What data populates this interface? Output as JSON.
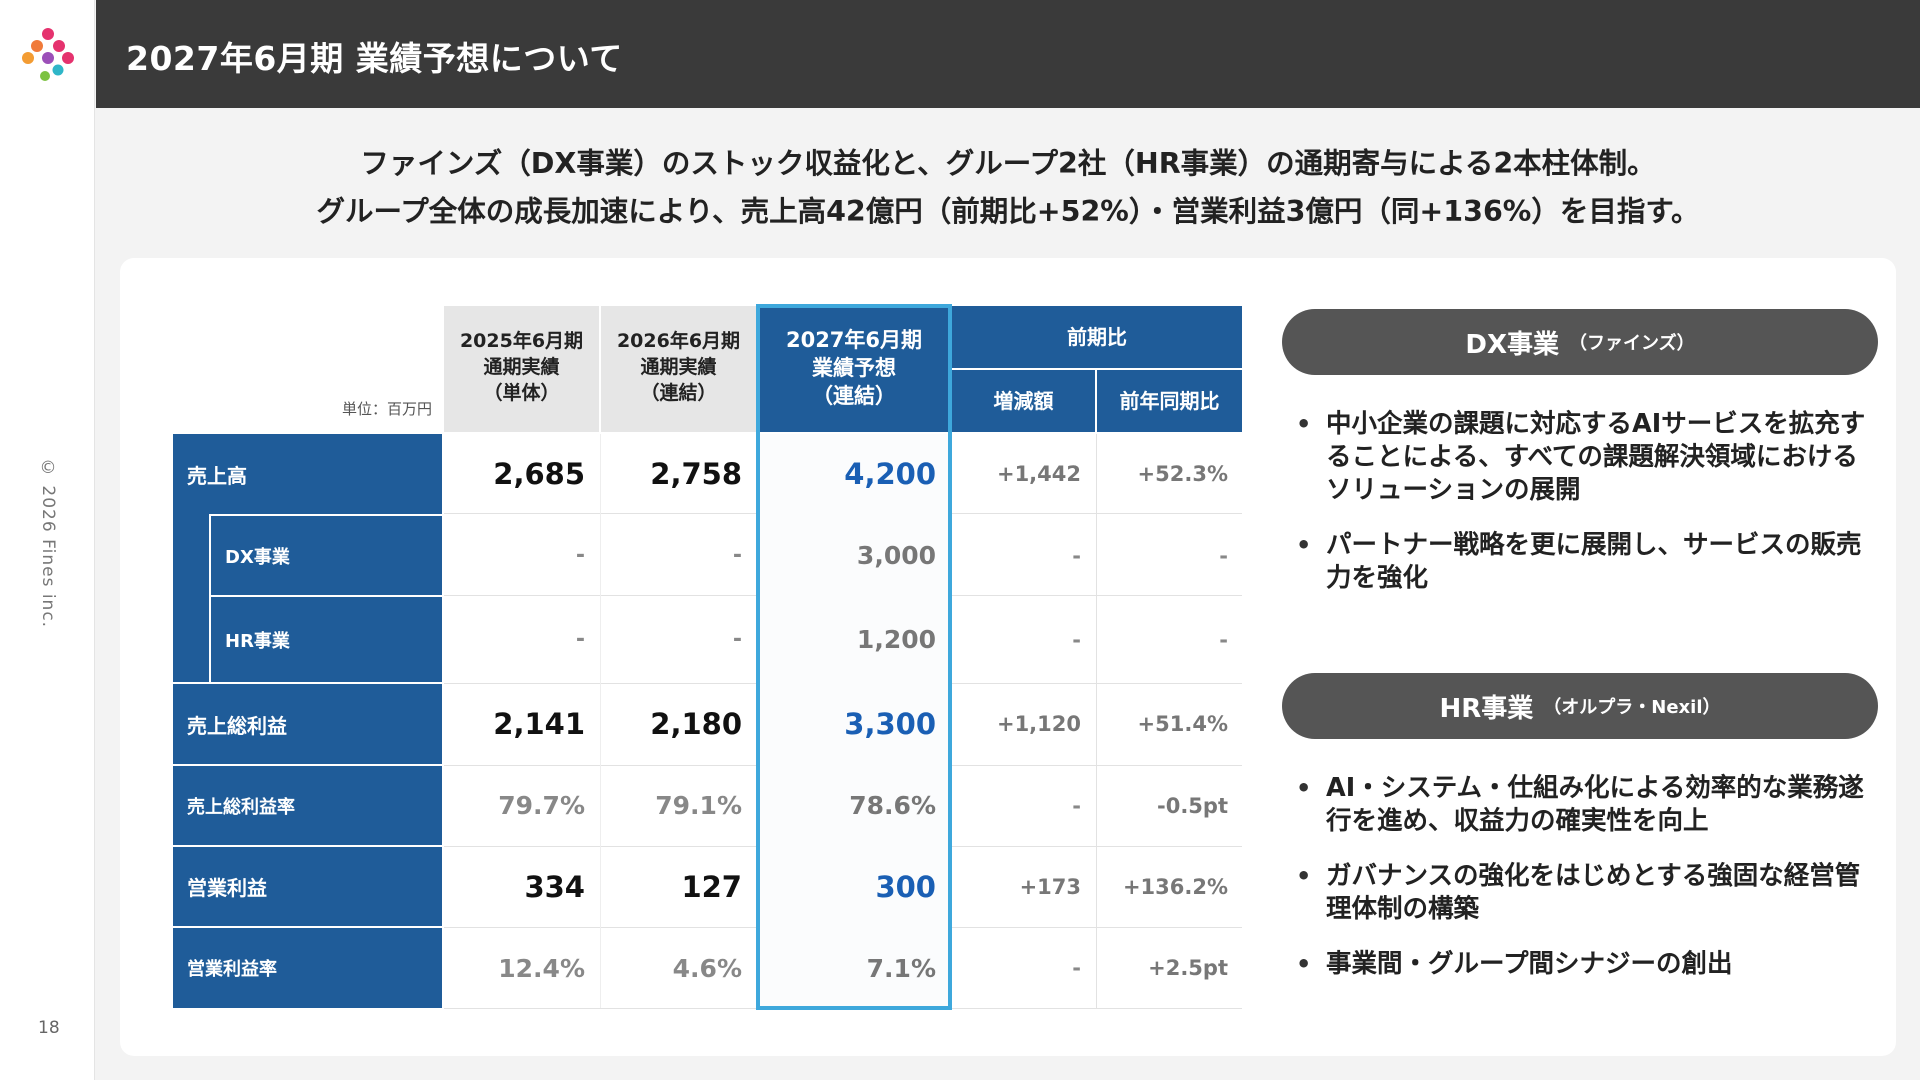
{
  "header": {
    "title": "2027年6月期 業績予想について"
  },
  "sidebar": {
    "copyright": "© 2026 Fines inc.",
    "page_number": "18"
  },
  "lead": {
    "line1": "ファインズ（DX事業）のストック収益化と、グループ2社（HR事業）の通期寄与による2本柱体制。",
    "line2": "グループ全体の成長加速により、売上高42億円（前期比+52%）・営業利益3億円（同+136%）を目指す。"
  },
  "table": {
    "unit": "単位：百万円",
    "columns": {
      "fy2025": [
        "2025年6月期",
        "通期実績",
        "（単体）"
      ],
      "fy2026": [
        "2026年6月期",
        "通期実績",
        "（連結）"
      ],
      "fy2027": [
        "2027年6月期",
        "業績予想",
        "（連結）"
      ],
      "yoy_group": "前期比",
      "change": "増減額",
      "yoy_ratio": "前年同期比"
    },
    "rows": [
      {
        "label": "売上高",
        "fy2025": "2,685",
        "fy2026": "2,758",
        "fy2027": "4,200",
        "change": "+1,442",
        "ratio": "+52.3%"
      },
      {
        "label": "DX事業",
        "fy2025": "-",
        "fy2026": "-",
        "fy2027": "3,000",
        "change": "-",
        "ratio": "-"
      },
      {
        "label": "HR事業",
        "fy2025": "-",
        "fy2026": "-",
        "fy2027": "1,200",
        "change": "-",
        "ratio": "-"
      },
      {
        "label": "売上総利益",
        "fy2025": "2,141",
        "fy2026": "2,180",
        "fy2027": "3,300",
        "change": "+1,120",
        "ratio": "+51.4%"
      },
      {
        "label": "売上総利益率",
        "fy2025": "79.7%",
        "fy2026": "79.1%",
        "fy2027": "78.6%",
        "change": "-",
        "ratio": "-0.5pt"
      },
      {
        "label": "営業利益",
        "fy2025": "334",
        "fy2026": "127",
        "fy2027": "300",
        "change": "+173",
        "ratio": "+136.2%"
      },
      {
        "label": "営業利益率",
        "fy2025": "12.4%",
        "fy2026": "4.6%",
        "fy2027": "7.1%",
        "change": "-",
        "ratio": "+2.5pt"
      }
    ]
  },
  "panels": {
    "dx": {
      "title": "DX事業",
      "subtitle": "（ファインズ）",
      "bullets": [
        "中小企業の課題に対応するAIサービスを拡充することによる、すべての課題解決領域におけるソリューションの展開",
        "パートナー戦略を更に展開し、サービスの販売力を強化"
      ]
    },
    "hr": {
      "title": "HR事業",
      "subtitle": "（オルプラ・Nexil）",
      "bullets": [
        "AI・システム・仕組み化による効率的な業務遂行を進め、収益力の確実性を向上",
        "ガバナンスの強化をはじめとする強固な経営管理体制の構築",
        "事業間・グループ間シナジーの創出"
      ]
    }
  },
  "colors": {
    "header_bg": "#3a3a3a",
    "table_blue": "#1f5c99",
    "highlight": "#3ea8dc",
    "value_blue": "#1a5fb4",
    "pill": "#555555"
  }
}
